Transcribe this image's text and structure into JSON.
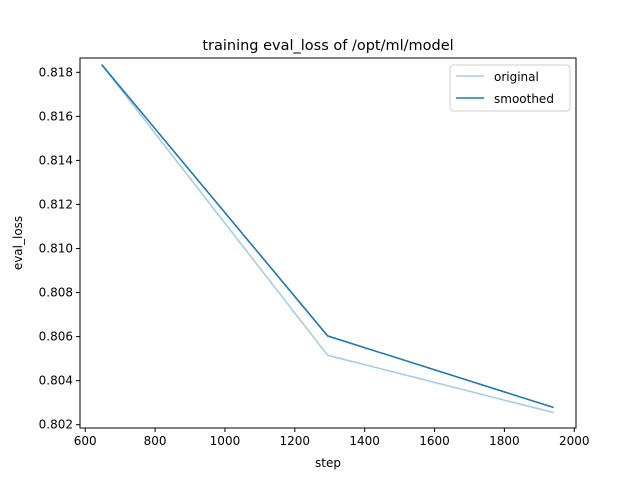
{
  "chart_data": {
    "type": "line",
    "title": "training eval_loss of /opt/ml/model",
    "xlabel": "step",
    "ylabel": "eval_loss",
    "xlim": [
      585,
      2005
    ],
    "ylim": [
      0.80185,
      0.81865
    ],
    "xticks": [
      600,
      800,
      1000,
      1200,
      1400,
      1600,
      1800,
      2000
    ],
    "yticks": [
      0.802,
      0.804,
      0.806,
      0.808,
      0.81,
      0.812,
      0.814,
      0.816,
      0.818
    ],
    "ytick_labels": [
      "0.802",
      "0.804",
      "0.806",
      "0.808",
      "0.810",
      "0.812",
      "0.814",
      "0.816",
      "0.818"
    ],
    "grid": false,
    "legend_position": "top-right",
    "series": [
      {
        "name": "original",
        "color": "#a6cee3",
        "x": [
          647,
          1294,
          1941
        ],
        "y": [
          0.81835,
          0.80515,
          0.80255
        ]
      },
      {
        "name": "smoothed",
        "color": "#1f78b4",
        "x": [
          647,
          1294,
          1941
        ],
        "y": [
          0.81835,
          0.80603,
          0.80278
        ]
      }
    ]
  }
}
